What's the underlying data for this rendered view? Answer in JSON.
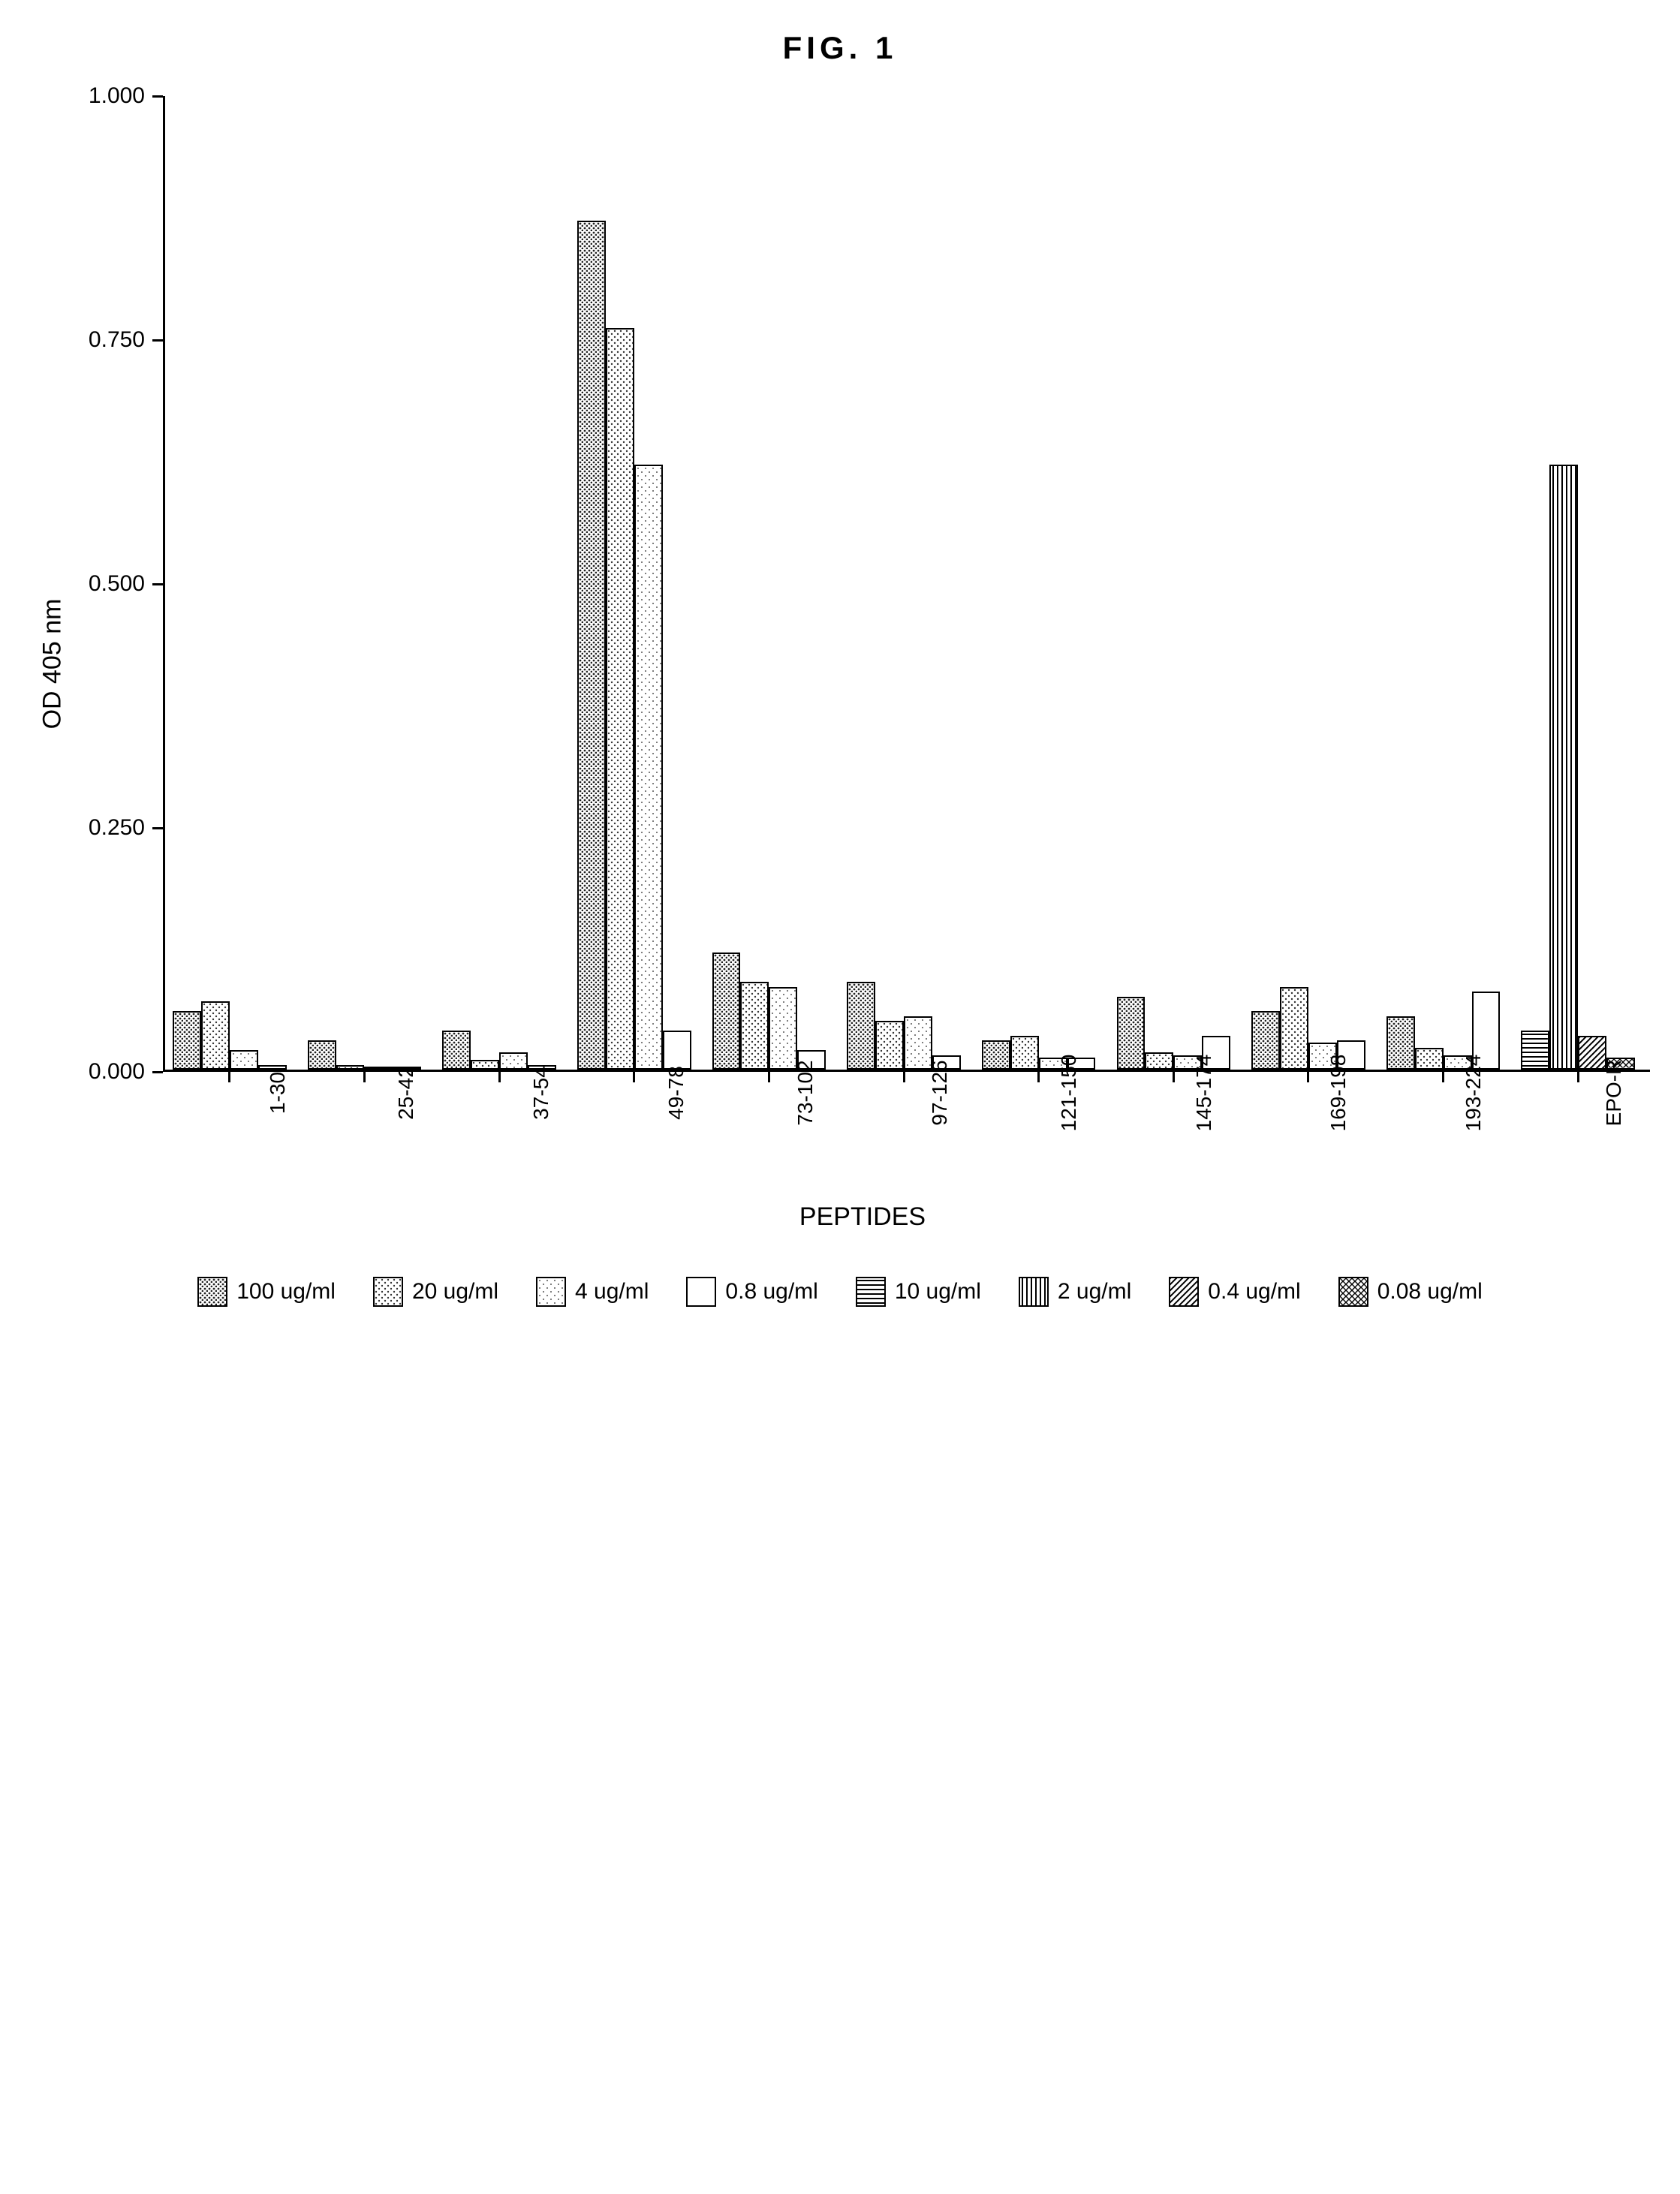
{
  "figure": {
    "title": "FIG. 1",
    "title_fontsize": 42,
    "background_color": "#ffffff"
  },
  "chart": {
    "type": "bar",
    "orientation": "horizontal-groups",
    "ylabel": "OD 405 nm",
    "xlabel": "PEPTIDES",
    "label_fontsize": 34,
    "tick_fontsize": 30,
    "ylim": [
      0,
      1.0
    ],
    "yticks": [
      0.0,
      0.25,
      0.5,
      0.75,
      1.0
    ],
    "ytick_labels": [
      "0.000",
      "0.250",
      "0.500",
      "0.750",
      "1.000"
    ],
    "axis_color": "#000000",
    "axis_width": 3,
    "categories": [
      "1-30",
      "25-42",
      "37-54",
      "49-78",
      "73-102",
      "97-126",
      "121-150",
      "145-174",
      "169-198",
      "193-224",
      "EPO-R"
    ],
    "series": [
      {
        "name": "100 ug/ml",
        "pattern": "dots-dense",
        "color": "#444444"
      },
      {
        "name": "20 ug/ml",
        "pattern": "dots-medium",
        "color": "#666666"
      },
      {
        "name": "4 ug/ml",
        "pattern": "dots-light",
        "color": "#888888"
      },
      {
        "name": "0.8 ug/ml",
        "pattern": "blank",
        "color": "#ffffff"
      },
      {
        "name": "10 ug/ml",
        "pattern": "h-lines",
        "color": "#000000"
      },
      {
        "name": "2 ug/ml",
        "pattern": "v-lines",
        "color": "#000000"
      },
      {
        "name": "0.4 ug/ml",
        "pattern": "diag",
        "color": "#000000"
      },
      {
        "name": "0.08 ug/ml",
        "pattern": "cross",
        "color": "#555555"
      }
    ],
    "data": {
      "1-30": [
        0.06,
        0.07,
        0.02,
        0.005,
        0,
        0,
        0,
        0
      ],
      "25-42": [
        0.03,
        0.005,
        0.003,
        0.002,
        0,
        0,
        0,
        0
      ],
      "37-54": [
        0.04,
        0.01,
        0.018,
        0.005,
        0,
        0,
        0,
        0
      ],
      "49-78": [
        0.87,
        0.76,
        0.62,
        0.04,
        0,
        0,
        0,
        0
      ],
      "73-102": [
        0.12,
        0.09,
        0.085,
        0.02,
        0,
        0,
        0,
        0
      ],
      "97-126": [
        0.09,
        0.05,
        0.055,
        0.015,
        0,
        0,
        0,
        0
      ],
      "121-150": [
        0.03,
        0.035,
        0.012,
        0.012,
        0,
        0,
        0,
        0
      ],
      "145-174": [
        0.075,
        0.018,
        0.015,
        0.035,
        0,
        0,
        0,
        0
      ],
      "169-198": [
        0.06,
        0.085,
        0.028,
        0.03,
        0,
        0,
        0,
        0
      ],
      "193-224": [
        0.055,
        0.022,
        0.015,
        0.08,
        0,
        0,
        0,
        0
      ],
      "EPO-R": [
        0,
        0,
        0,
        0,
        0.04,
        0.62,
        0.035,
        0.012
      ]
    },
    "bar_border_color": "#000000",
    "bar_border_width": 2
  }
}
